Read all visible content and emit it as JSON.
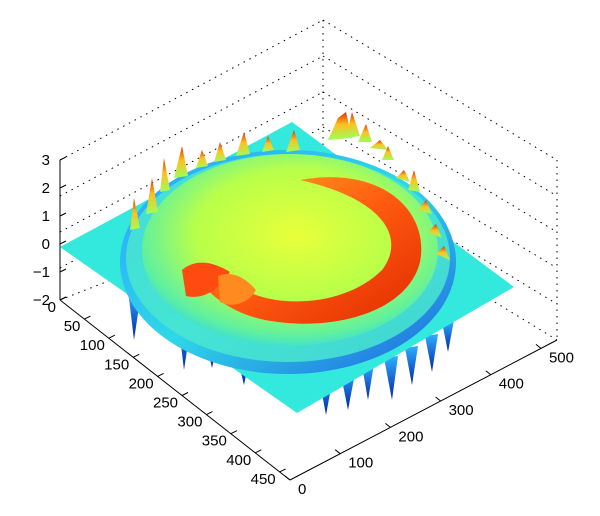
{
  "chart_data": {
    "type": "surface",
    "title": "",
    "xlabel": "",
    "ylabel": "",
    "zlabel": "",
    "x_range": [
      0,
      500
    ],
    "y_range": [
      0,
      450
    ],
    "z_range": [
      -2,
      3
    ],
    "x_ticks": [
      "0",
      "100",
      "200",
      "300",
      "400",
      "500"
    ],
    "y_ticks": [
      "0",
      "50",
      "100",
      "150",
      "200",
      "250",
      "300",
      "350",
      "400",
      "450"
    ],
    "z_ticks": [
      "3",
      "2",
      "1",
      "0",
      "−1",
      "−2"
    ],
    "grid": true,
    "colormap": "jet",
    "colors": {
      "background": "#ffffff",
      "base_plane": "#33e8dc",
      "colormap_low": "#0033cc",
      "colormap_mid": "#d6ff33",
      "colormap_high": "#cc1a00"
    },
    "description_values": {
      "base_plane_z": 0,
      "ring_peak_z": 2.8,
      "ring_trough_z": -1.8,
      "crescent_peak_z": 1.6
    }
  }
}
